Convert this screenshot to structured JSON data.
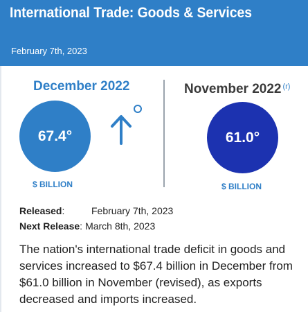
{
  "header": {
    "title": "International Trade: Goods & Services",
    "date": "February 7th, 2023"
  },
  "current": {
    "period": "December 2022",
    "value": "67.4°",
    "unit": "$ BILLION"
  },
  "prior": {
    "period": "November 2022",
    "revised_marker": "(r)",
    "value": "61.0°",
    "unit": "$ BILLION"
  },
  "change": {
    "direction_icon": "arrow-up-icon",
    "marker_icon": "degree-icon"
  },
  "release": {
    "released_label": "Released",
    "released_sep": ":",
    "released_value": "February 7th, 2023",
    "next_label": "Next Release",
    "next_sep": ":",
    "next_value": "March 8th, 2023"
  },
  "summary": "The nation's international trade deficit in goods and services increased to $67.4 billion in December from $61.0 billion in November (revised), as exports decreased and imports increased.",
  "colors": {
    "accent": "#2f7fc7",
    "prior_circle": "#1c32b0",
    "header_bg": "#2f7fc7"
  }
}
